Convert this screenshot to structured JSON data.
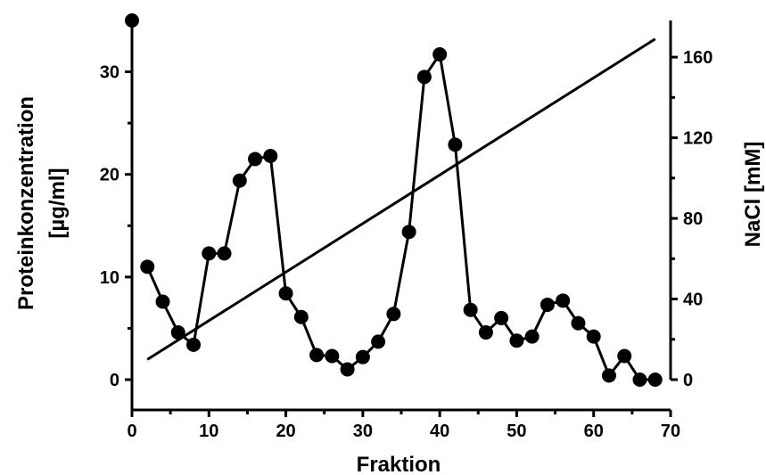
{
  "chart_data": {
    "type": "line",
    "xlabel": "Fraktion",
    "ylabel": [
      "Proteinkonzentration",
      "[µg/ml]"
    ],
    "y2label": "NaCl [mM]",
    "xlim": [
      0,
      70
    ],
    "ylim": [
      0,
      35
    ],
    "y2lim": [
      0,
      170
    ],
    "xticks": [
      0,
      10,
      20,
      30,
      40,
      50,
      60,
      70
    ],
    "yticks": [
      0,
      10,
      20,
      30
    ],
    "y2ticks": [
      0,
      40,
      80,
      120,
      160
    ],
    "grid": false,
    "series": [
      {
        "axis": "left",
        "marker": "circle",
        "color": "#000000",
        "x": [
          2,
          4,
          6,
          8,
          10,
          12,
          14,
          16,
          18,
          20,
          22,
          24,
          26,
          28,
          30,
          32,
          34,
          36,
          38,
          40,
          42,
          44,
          46,
          48,
          50,
          52,
          54,
          56,
          58,
          60,
          62,
          64,
          66,
          68
        ],
        "y": [
          11.0,
          7.6,
          4.6,
          3.4,
          12.3,
          12.3,
          19.4,
          21.5,
          21.8,
          8.4,
          6.1,
          2.4,
          2.3,
          1.0,
          2.2,
          3.7,
          6.4,
          14.4,
          29.5,
          31.7,
          22.9,
          6.8,
          4.6,
          6.0,
          3.8,
          4.2,
          7.3,
          7.7,
          5.5,
          4.2,
          0.4,
          2.3,
          0.0,
          0.0
        ]
      },
      {
        "axis": "right",
        "marker": "none",
        "color": "#000000",
        "x": [
          2,
          68
        ],
        "y": [
          10,
          169
        ]
      }
    ],
    "extra_points": [
      {
        "axis": "left",
        "x": 0,
        "y": 35.0
      }
    ]
  }
}
